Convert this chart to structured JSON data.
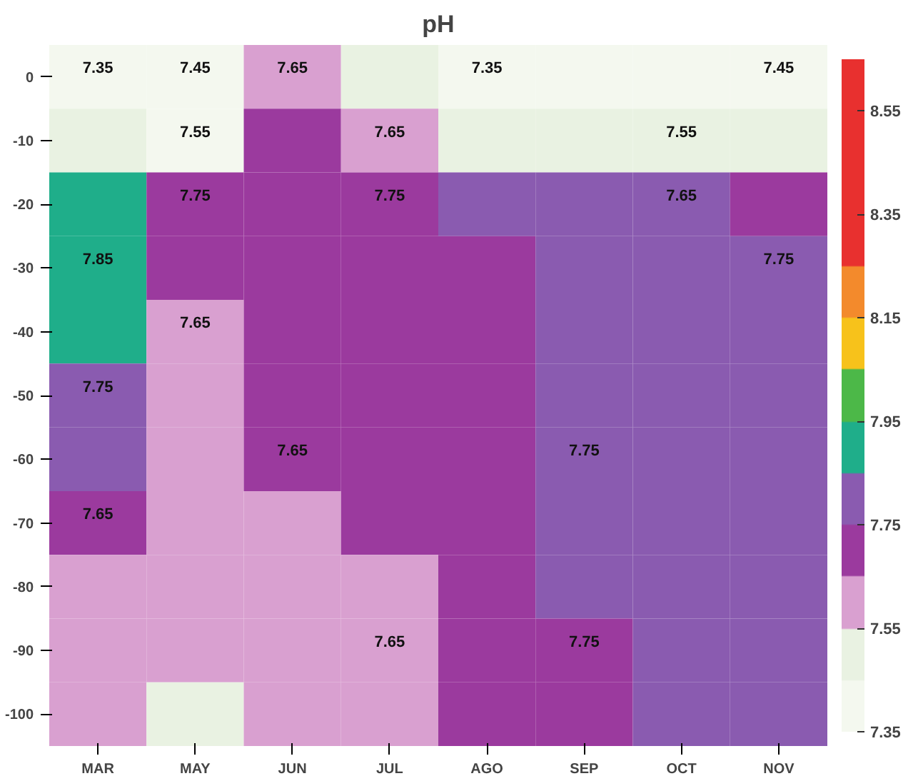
{
  "chart_data": {
    "type": "heatmap",
    "title": "pH",
    "categories": [
      "MAR",
      "MAY",
      "JUN",
      "JUL",
      "AGO",
      "SEP",
      "OCT",
      "NOV"
    ],
    "y_categories": [
      "0",
      "-10",
      "-20",
      "-30",
      "-40",
      "-50",
      "-60",
      "-70",
      "-80",
      "-90",
      "-100"
    ],
    "cells": [
      [
        7.4,
        7.4,
        7.6,
        7.5,
        7.4,
        7.4,
        7.4,
        7.4
      ],
      [
        7.5,
        7.4,
        7.7,
        7.6,
        7.5,
        7.5,
        7.5,
        7.5
      ],
      [
        7.9,
        7.7,
        7.7,
        7.7,
        7.8,
        7.8,
        7.8,
        7.7
      ],
      [
        7.9,
        7.7,
        7.7,
        7.7,
        7.7,
        7.8,
        7.8,
        7.8
      ],
      [
        7.9,
        7.6,
        7.7,
        7.7,
        7.7,
        7.8,
        7.8,
        7.8
      ],
      [
        7.8,
        7.6,
        7.7,
        7.7,
        7.7,
        7.8,
        7.8,
        7.8
      ],
      [
        7.8,
        7.6,
        7.7,
        7.7,
        7.7,
        7.8,
        7.8,
        7.8
      ],
      [
        7.7,
        7.6,
        7.6,
        7.7,
        7.7,
        7.8,
        7.8,
        7.8
      ],
      [
        7.6,
        7.6,
        7.6,
        7.6,
        7.7,
        7.8,
        7.8,
        7.8
      ],
      [
        7.6,
        7.6,
        7.6,
        7.6,
        7.7,
        7.7,
        7.8,
        7.8
      ],
      [
        7.6,
        7.5,
        7.6,
        7.6,
        7.7,
        7.7,
        7.8,
        7.8
      ]
    ],
    "colors": [
      "#f4f8ef",
      "#e9f2e2",
      "#d9a0d0",
      "#9b3a9e",
      "#8a5bb0",
      "#1fae8a",
      "#4cb848",
      "#f7c21b",
      "#f38a2c",
      "#e8302f",
      "#e8302f",
      "#e8302f",
      "#e8302f"
    ],
    "clim": [
      7.35,
      8.65
    ],
    "cticks": [
      7.35,
      7.55,
      7.75,
      7.95,
      8.15,
      8.35,
      8.55
    ],
    "annotations": [
      "7.35",
      "7.45",
      "7.55",
      "7.65",
      "7.75",
      "7.85",
      "7.75",
      "7.65",
      "7.65",
      "7.65",
      "7.65",
      "7.75",
      "7.35",
      "7.45",
      "7.55",
      "7.65",
      "7.75",
      "7.75",
      "7.65",
      "7.75"
    ]
  }
}
